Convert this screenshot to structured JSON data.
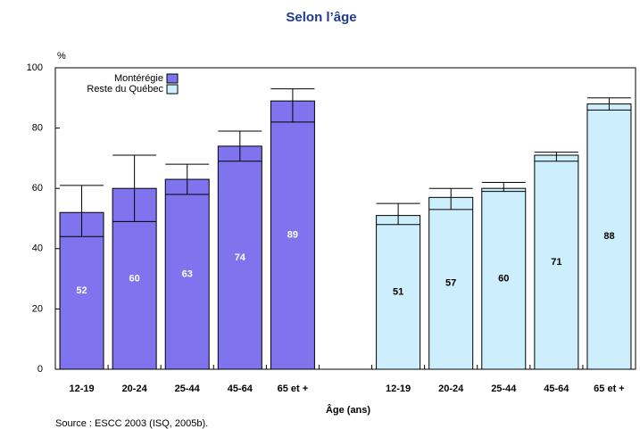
{
  "chart_data": {
    "type": "bar",
    "title": "Selon l’âge",
    "y_unit": "%",
    "x_label": "Âge (ans)",
    "source": "Source : ESCC 2003 (ISQ, 2005b).",
    "categories": [
      "12-19",
      "20-24",
      "25-44",
      "45-64",
      "65 et +"
    ],
    "series": [
      {
        "name": "Montérégie",
        "color": "#7f74ee",
        "label_color": "#ffffff",
        "values": [
          52,
          60,
          63,
          74,
          89
        ],
        "ci_low": [
          44,
          49,
          58,
          69,
          82
        ],
        "ci_high": [
          61,
          71,
          68,
          79,
          93
        ]
      },
      {
        "name": "Reste du Québec",
        "color": "#cdeefc",
        "label_color": "#000000",
        "values": [
          51,
          57,
          60,
          71,
          88
        ],
        "ci_low": [
          48,
          53,
          59,
          69,
          86
        ],
        "ci_high": [
          55,
          60,
          62,
          72,
          90
        ]
      }
    ],
    "ylim": [
      0,
      100
    ],
    "yticks": [
      0,
      20,
      40,
      60,
      80,
      100
    ],
    "grid": false,
    "legend": "top-left"
  }
}
